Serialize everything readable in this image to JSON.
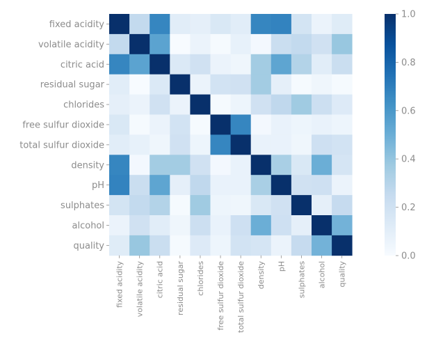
{
  "chart_data": {
    "type": "heatmap",
    "labels": [
      "fixed acidity",
      "volatile acidity",
      "citric acid",
      "residual sugar",
      "chlorides",
      "free sulfur dioxide",
      "total sulfur dioxide",
      "density",
      "pH",
      "sulphates",
      "alcohol",
      "quality"
    ],
    "values": [
      [
        1.0,
        0.26,
        0.67,
        0.11,
        0.09,
        0.15,
        0.11,
        0.67,
        0.68,
        0.18,
        0.06,
        0.12
      ],
      [
        0.26,
        1.0,
        0.55,
        0.0,
        0.06,
        0.01,
        0.08,
        0.02,
        0.23,
        0.26,
        0.2,
        0.39
      ],
      [
        0.67,
        0.55,
        1.0,
        0.14,
        0.2,
        0.06,
        0.04,
        0.36,
        0.54,
        0.31,
        0.11,
        0.23
      ],
      [
        0.11,
        0.0,
        0.14,
        1.0,
        0.06,
        0.19,
        0.2,
        0.36,
        0.09,
        0.01,
        0.04,
        0.01
      ],
      [
        0.09,
        0.06,
        0.2,
        0.06,
        1.0,
        0.01,
        0.05,
        0.2,
        0.27,
        0.37,
        0.22,
        0.13
      ],
      [
        0.15,
        0.01,
        0.06,
        0.19,
        0.01,
        1.0,
        0.67,
        0.02,
        0.07,
        0.05,
        0.07,
        0.05
      ],
      [
        0.11,
        0.08,
        0.04,
        0.2,
        0.05,
        0.67,
        1.0,
        0.07,
        0.07,
        0.04,
        0.21,
        0.19
      ],
      [
        0.67,
        0.02,
        0.36,
        0.36,
        0.2,
        0.02,
        0.07,
        1.0,
        0.34,
        0.15,
        0.5,
        0.17
      ],
      [
        0.68,
        0.23,
        0.54,
        0.09,
        0.27,
        0.07,
        0.07,
        0.34,
        1.0,
        0.2,
        0.21,
        0.06
      ],
      [
        0.18,
        0.26,
        0.31,
        0.01,
        0.37,
        0.05,
        0.04,
        0.15,
        0.2,
        1.0,
        0.09,
        0.25
      ],
      [
        0.06,
        0.2,
        0.11,
        0.04,
        0.22,
        0.07,
        0.21,
        0.5,
        0.21,
        0.09,
        1.0,
        0.48
      ],
      [
        0.12,
        0.39,
        0.23,
        0.01,
        0.13,
        0.05,
        0.19,
        0.17,
        0.06,
        0.25,
        0.48,
        1.0
      ]
    ],
    "colorbar": {
      "range": [
        0,
        1
      ],
      "ticks": [
        "0.0",
        "0.2",
        "0.4",
        "0.6",
        "0.8",
        "1.0"
      ],
      "colormap": "Blues"
    },
    "title": "",
    "xlabel": "",
    "ylabel": ""
  }
}
